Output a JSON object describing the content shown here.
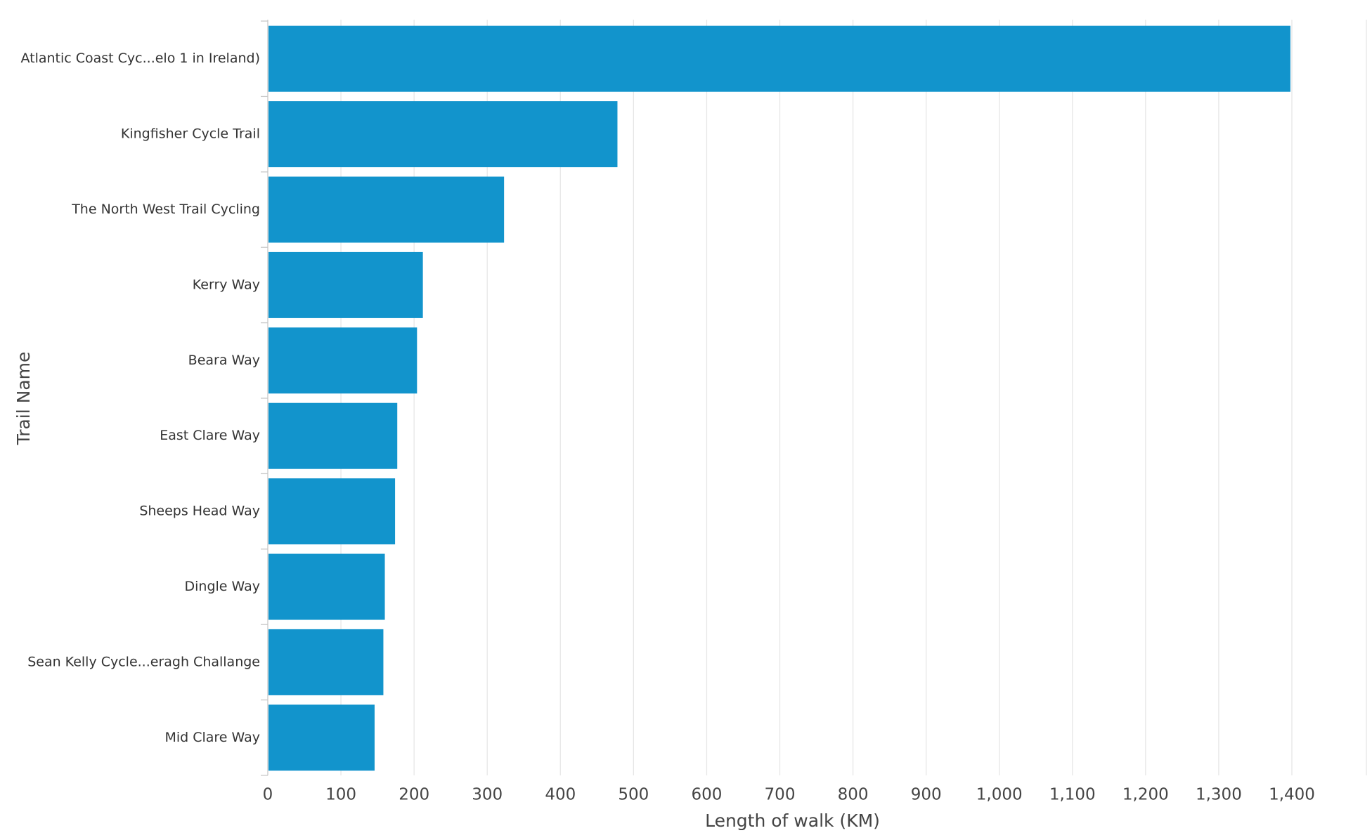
{
  "chart_data": {
    "type": "bar",
    "orientation": "horizontal",
    "categories": [
      "Atlantic Coast Cyc...elo 1 in Ireland)",
      "Kingfisher Cycle Trail",
      "The North West Trail Cycling",
      "Kerry Way",
      "Beara Way",
      "East Clare Way",
      "Sheeps Head Way",
      "Dingle Way",
      "Sean Kelly Cycle...eragh Challange",
      "Mid Clare Way"
    ],
    "values": [
      1398,
      478,
      323,
      212,
      204,
      177,
      174,
      160,
      158,
      146
    ],
    "xlabel": "Length of walk (KM)",
    "ylabel": "Trail Name",
    "xlim": [
      0,
      1400
    ],
    "x_ticks": [
      0,
      100,
      200,
      300,
      400,
      500,
      600,
      700,
      800,
      900,
      1000,
      1100,
      1200,
      1300,
      1400
    ],
    "x_tick_labels": [
      "0",
      "100",
      "200",
      "300",
      "400",
      "500",
      "600",
      "700",
      "800",
      "900",
      "1,000",
      "1,100",
      "1,200",
      "1,300",
      "1,400"
    ],
    "grid": true,
    "bar_color": "#1294cc",
    "grid_color": "#e6e6e6",
    "axis_color": "#c8c8c8"
  }
}
